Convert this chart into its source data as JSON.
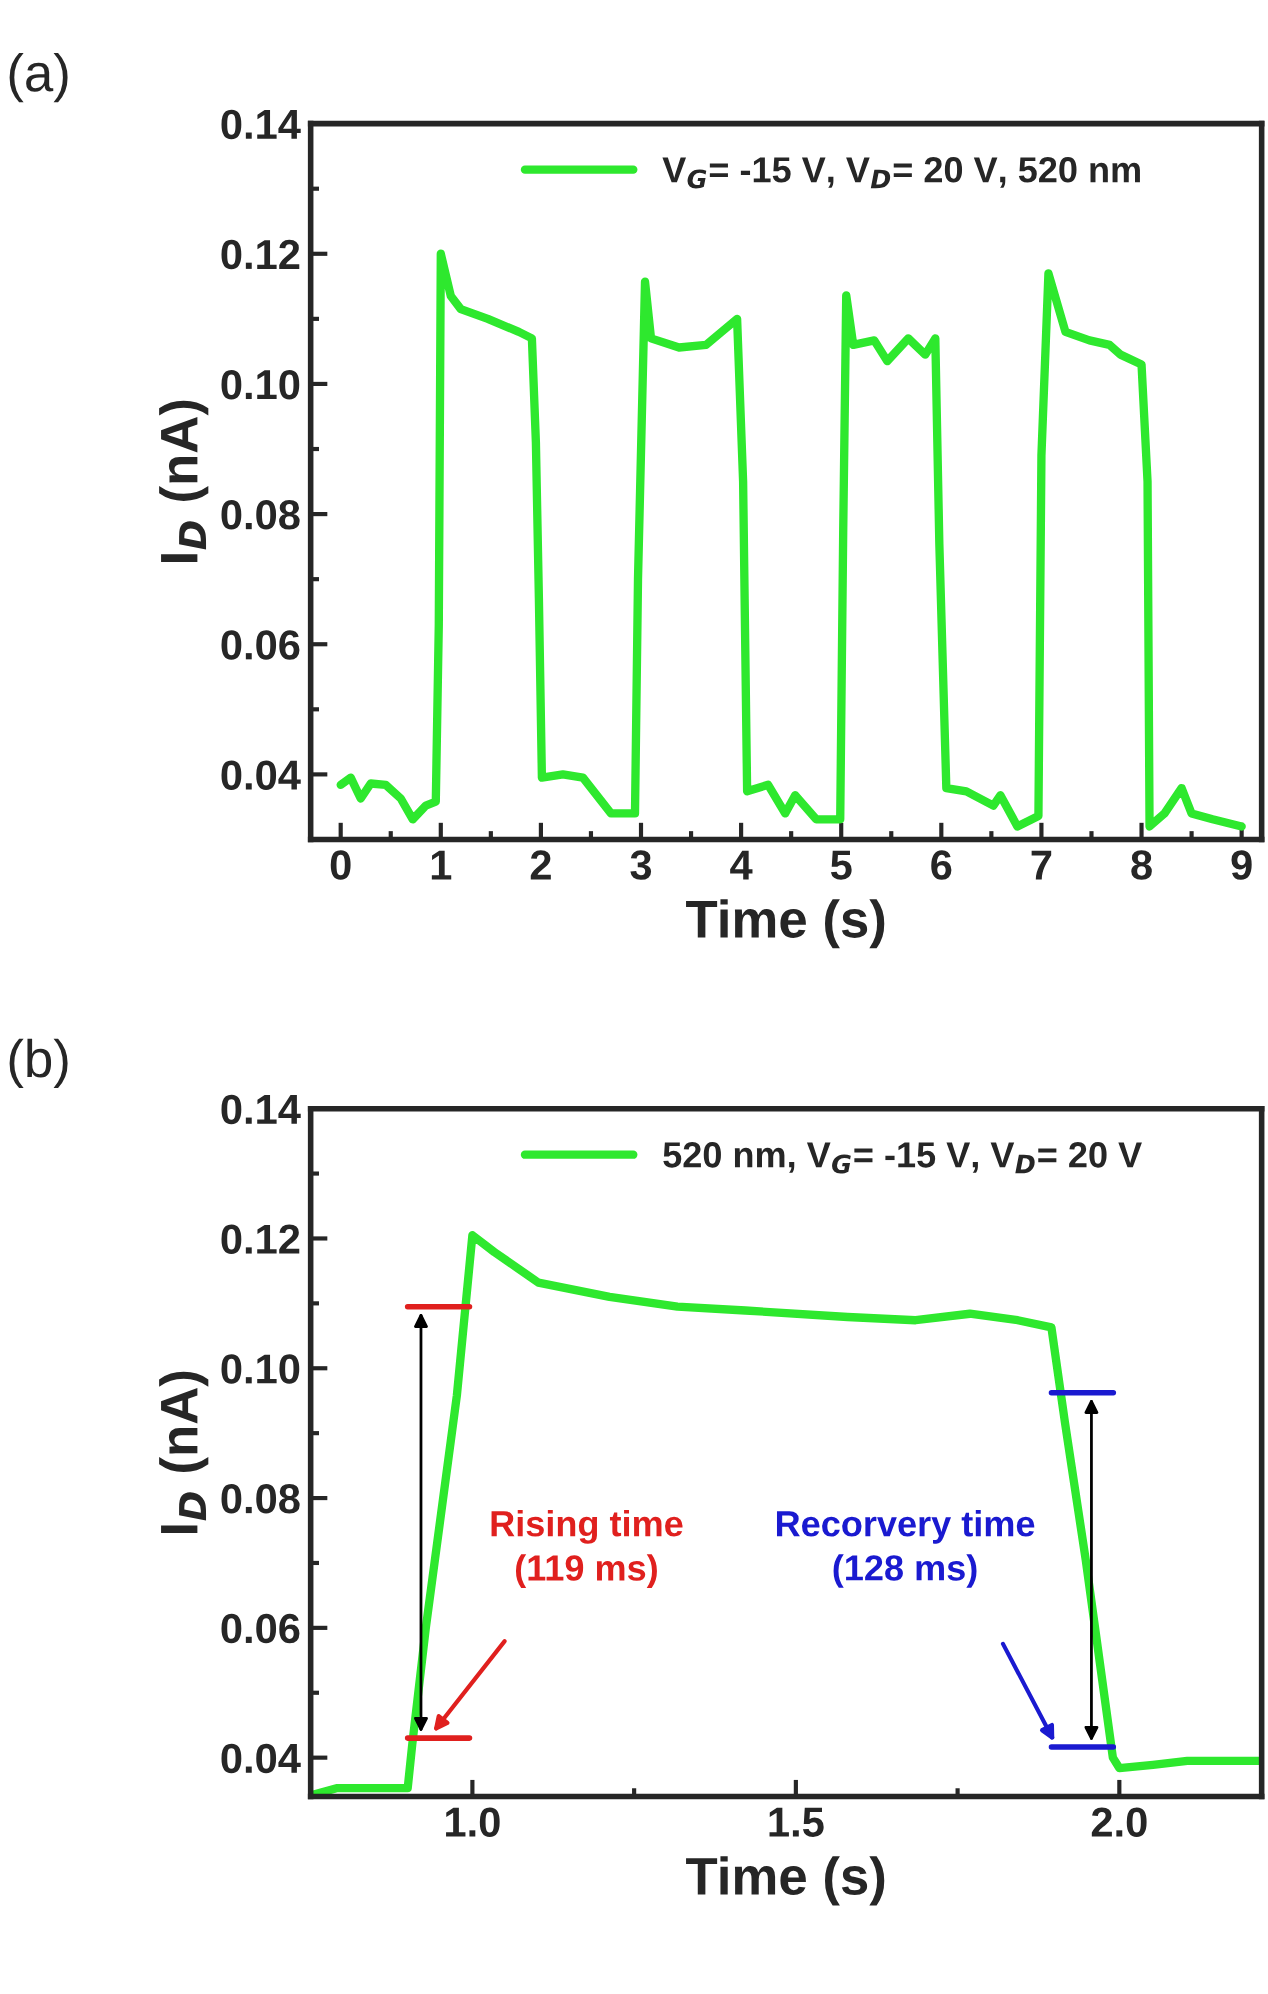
{
  "chart_data": [
    {
      "type": "line",
      "title": "(a)",
      "xlabel": "Time (s)",
      "ylabel": "I$_{D}$ (nA)",
      "xlim": [
        -0.3,
        9.2
      ],
      "ylim": [
        0.03,
        0.14
      ],
      "xticks": [
        0,
        1,
        2,
        3,
        4,
        5,
        6,
        7,
        8,
        9
      ],
      "yticks": [
        {
          "value": 0.04,
          "label": "0.04"
        },
        {
          "value": 0.06,
          "label": "0.06"
        },
        {
          "value": 0.08,
          "label": "0.08"
        },
        {
          "value": 0.1,
          "label": "0.10"
        },
        {
          "value": 0.12,
          "label": "0.12"
        },
        {
          "value": 0.14,
          "label": "0.14"
        }
      ],
      "legend": "top",
      "grid": false,
      "marker": "none",
      "line_style": "solid",
      "series": [
        {
          "name": "V$_{G}$= -15 V, V$_{D}$= 20 V, 520 nm",
          "color": "#2ee82e",
          "x": [
            0,
            0.1,
            0.2,
            0.3,
            0.45,
            0.6,
            0.72,
            0.85,
            0.95,
            0.98,
            1.0,
            1.1,
            1.2,
            1.47,
            1.78,
            1.91,
            1.95,
            1.98,
            2.01,
            2.22,
            2.42,
            2.7,
            2.94,
            2.97,
            3.04,
            3.1,
            3.38,
            3.65,
            3.96,
            4.02,
            4.06,
            4.27,
            4.44,
            4.54,
            4.75,
            4.99,
            5.02,
            5.05,
            5.12,
            5.33,
            5.46,
            5.67,
            5.84,
            5.94,
            5.98,
            6.05,
            6.25,
            6.52,
            6.59,
            6.76,
            6.97,
            7.0,
            7.07,
            7.24,
            7.48,
            7.68,
            7.79,
            8.0,
            8.06,
            8.08,
            8.23,
            8.4,
            8.5,
            8.71,
            9.0
          ],
          "values": [
            0.0384,
            0.0395,
            0.0363,
            0.0386,
            0.0384,
            0.0363,
            0.0331,
            0.0352,
            0.0358,
            0.063,
            0.12,
            0.1135,
            0.1115,
            0.11,
            0.108,
            0.107,
            0.091,
            0.067,
            0.0395,
            0.04,
            0.0395,
            0.034,
            0.034,
            0.07,
            0.1157,
            0.107,
            0.1056,
            0.106,
            0.11,
            0.085,
            0.0374,
            0.0384,
            0.034,
            0.0368,
            0.0331,
            0.0331,
            0.0776,
            0.1136,
            0.106,
            0.1067,
            0.1035,
            0.107,
            0.1045,
            0.107,
            0.0755,
            0.0379,
            0.0374,
            0.0352,
            0.0368,
            0.032,
            0.0336,
            0.089,
            0.117,
            0.108,
            0.1067,
            0.106,
            0.1045,
            0.103,
            0.085,
            0.032,
            0.034,
            0.0379,
            0.034,
            0.0331,
            0.032
          ]
        }
      ]
    },
    {
      "type": "line",
      "title": "(b)",
      "xlabel": "Time (s)",
      "ylabel": "I$_{D}$ (nA)",
      "xlim": [
        0.75,
        2.22
      ],
      "ylim": [
        0.034,
        0.14
      ],
      "xticks": [
        {
          "value": 1.0,
          "label": "1.0"
        },
        {
          "value": 1.5,
          "label": "1.5"
        },
        {
          "value": 2.0,
          "label": "2.0"
        }
      ],
      "yticks": [
        {
          "value": 0.04,
          "label": "0.04"
        },
        {
          "value": 0.06,
          "label": "0.06"
        },
        {
          "value": 0.08,
          "label": "0.08"
        },
        {
          "value": 0.1,
          "label": "0.10"
        },
        {
          "value": 0.12,
          "label": "0.12"
        },
        {
          "value": 0.14,
          "label": "0.14"
        }
      ],
      "legend": "top",
      "grid": false,
      "marker": "none",
      "line_style": "solid",
      "series": [
        {
          "name": "520 nm, V$_{G}$= -15 V, V$_{D}$= 20 V",
          "color": "#2ee82e",
          "x": [
            0.75,
            0.79,
            0.9,
            0.907,
            0.928,
            0.976,
            1.0,
            1.034,
            1.102,
            1.212,
            1.317,
            1.422,
            1.58,
            1.685,
            1.769,
            1.843,
            1.895,
            1.916,
            1.948,
            1.99,
            2.0,
            2.052,
            2.105,
            2.22
          ],
          "values": [
            0.0342,
            0.0353,
            0.0353,
            0.042,
            0.06,
            0.0958,
            0.1205,
            0.1179,
            0.1132,
            0.111,
            0.1095,
            0.1089,
            0.1079,
            0.1074,
            0.1084,
            0.1074,
            0.1063,
            0.0916,
            0.0705,
            0.04,
            0.0384,
            0.0389,
            0.0395,
            0.0395
          ]
        }
      ],
      "annotations": [
        "Rising time\n(119 ms)",
        "Recorvery time\n(128 ms)"
      ]
    }
  ]
}
